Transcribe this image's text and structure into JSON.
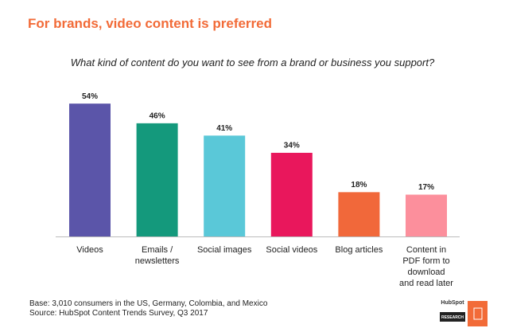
{
  "chart_data": {
    "type": "bar",
    "title": "For brands, video content is preferred",
    "subtitle": "What kind of content do you want to see from a brand or business you support?",
    "categories": [
      "Videos",
      "Emails /\nnewsletters",
      "Social images",
      "Social videos",
      "Blog articles",
      "Content in\nPDF form to\ndownload\nand read later"
    ],
    "values": [
      54,
      46,
      41,
      34,
      18,
      17
    ],
    "value_labels": [
      "54%",
      "46%",
      "41%",
      "34%",
      "18%",
      "17%"
    ],
    "colors": [
      "#5b55a9",
      "#14997c",
      "#5ac8d8",
      "#e9175c",
      "#f1683a",
      "#fc8f9c"
    ],
    "footnotes": [
      "Base: 3,010 consumers in the US, Germany, Colombia, and Mexico",
      "Source: HubSpot Content Trends Survey, Q3 2017"
    ]
  },
  "branding": {
    "logo": "HubSpot",
    "tag": "RESEARCH"
  }
}
